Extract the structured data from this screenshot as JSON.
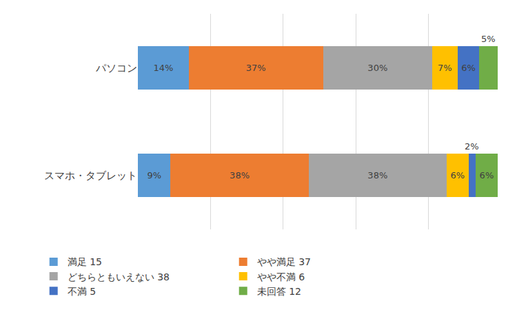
{
  "chart_data": {
    "type": "bar",
    "orientation": "horizontal",
    "stacked": true,
    "categories": [
      "パソコン",
      "スマホ・タブレット"
    ],
    "series": [
      {
        "name": "満足 15",
        "color": "#5b9bd5",
        "values": [
          14,
          9
        ],
        "value_labels": [
          "14%",
          "9%"
        ]
      },
      {
        "name": "やや満足 37",
        "color": "#ed7d31",
        "values": [
          37,
          38
        ],
        "value_labels": [
          "37%",
          "38%"
        ]
      },
      {
        "name": "どちらともいえない 38",
        "color": "#a5a5a5",
        "values": [
          30,
          38
        ],
        "value_labels": [
          "30%",
          "38%"
        ]
      },
      {
        "name": "やや不満 6",
        "color": "#ffc000",
        "values": [
          7,
          6
        ],
        "value_labels": [
          "7%",
          "6%"
        ]
      },
      {
        "name": "不満 5",
        "color": "#4472c4",
        "values": [
          6,
          2
        ],
        "value_labels": [
          "6%",
          "2%"
        ]
      },
      {
        "name": "未回答 12",
        "color": "#70ad47",
        "values": [
          5,
          6
        ],
        "value_labels": [
          "5%",
          "6%"
        ]
      }
    ],
    "xlim": [
      0,
      100
    ],
    "xticks": [
      0,
      20,
      40,
      60,
      80,
      100
    ],
    "grid": true,
    "tick_labels": "y",
    "data_labels": true,
    "legend": "bottom"
  }
}
